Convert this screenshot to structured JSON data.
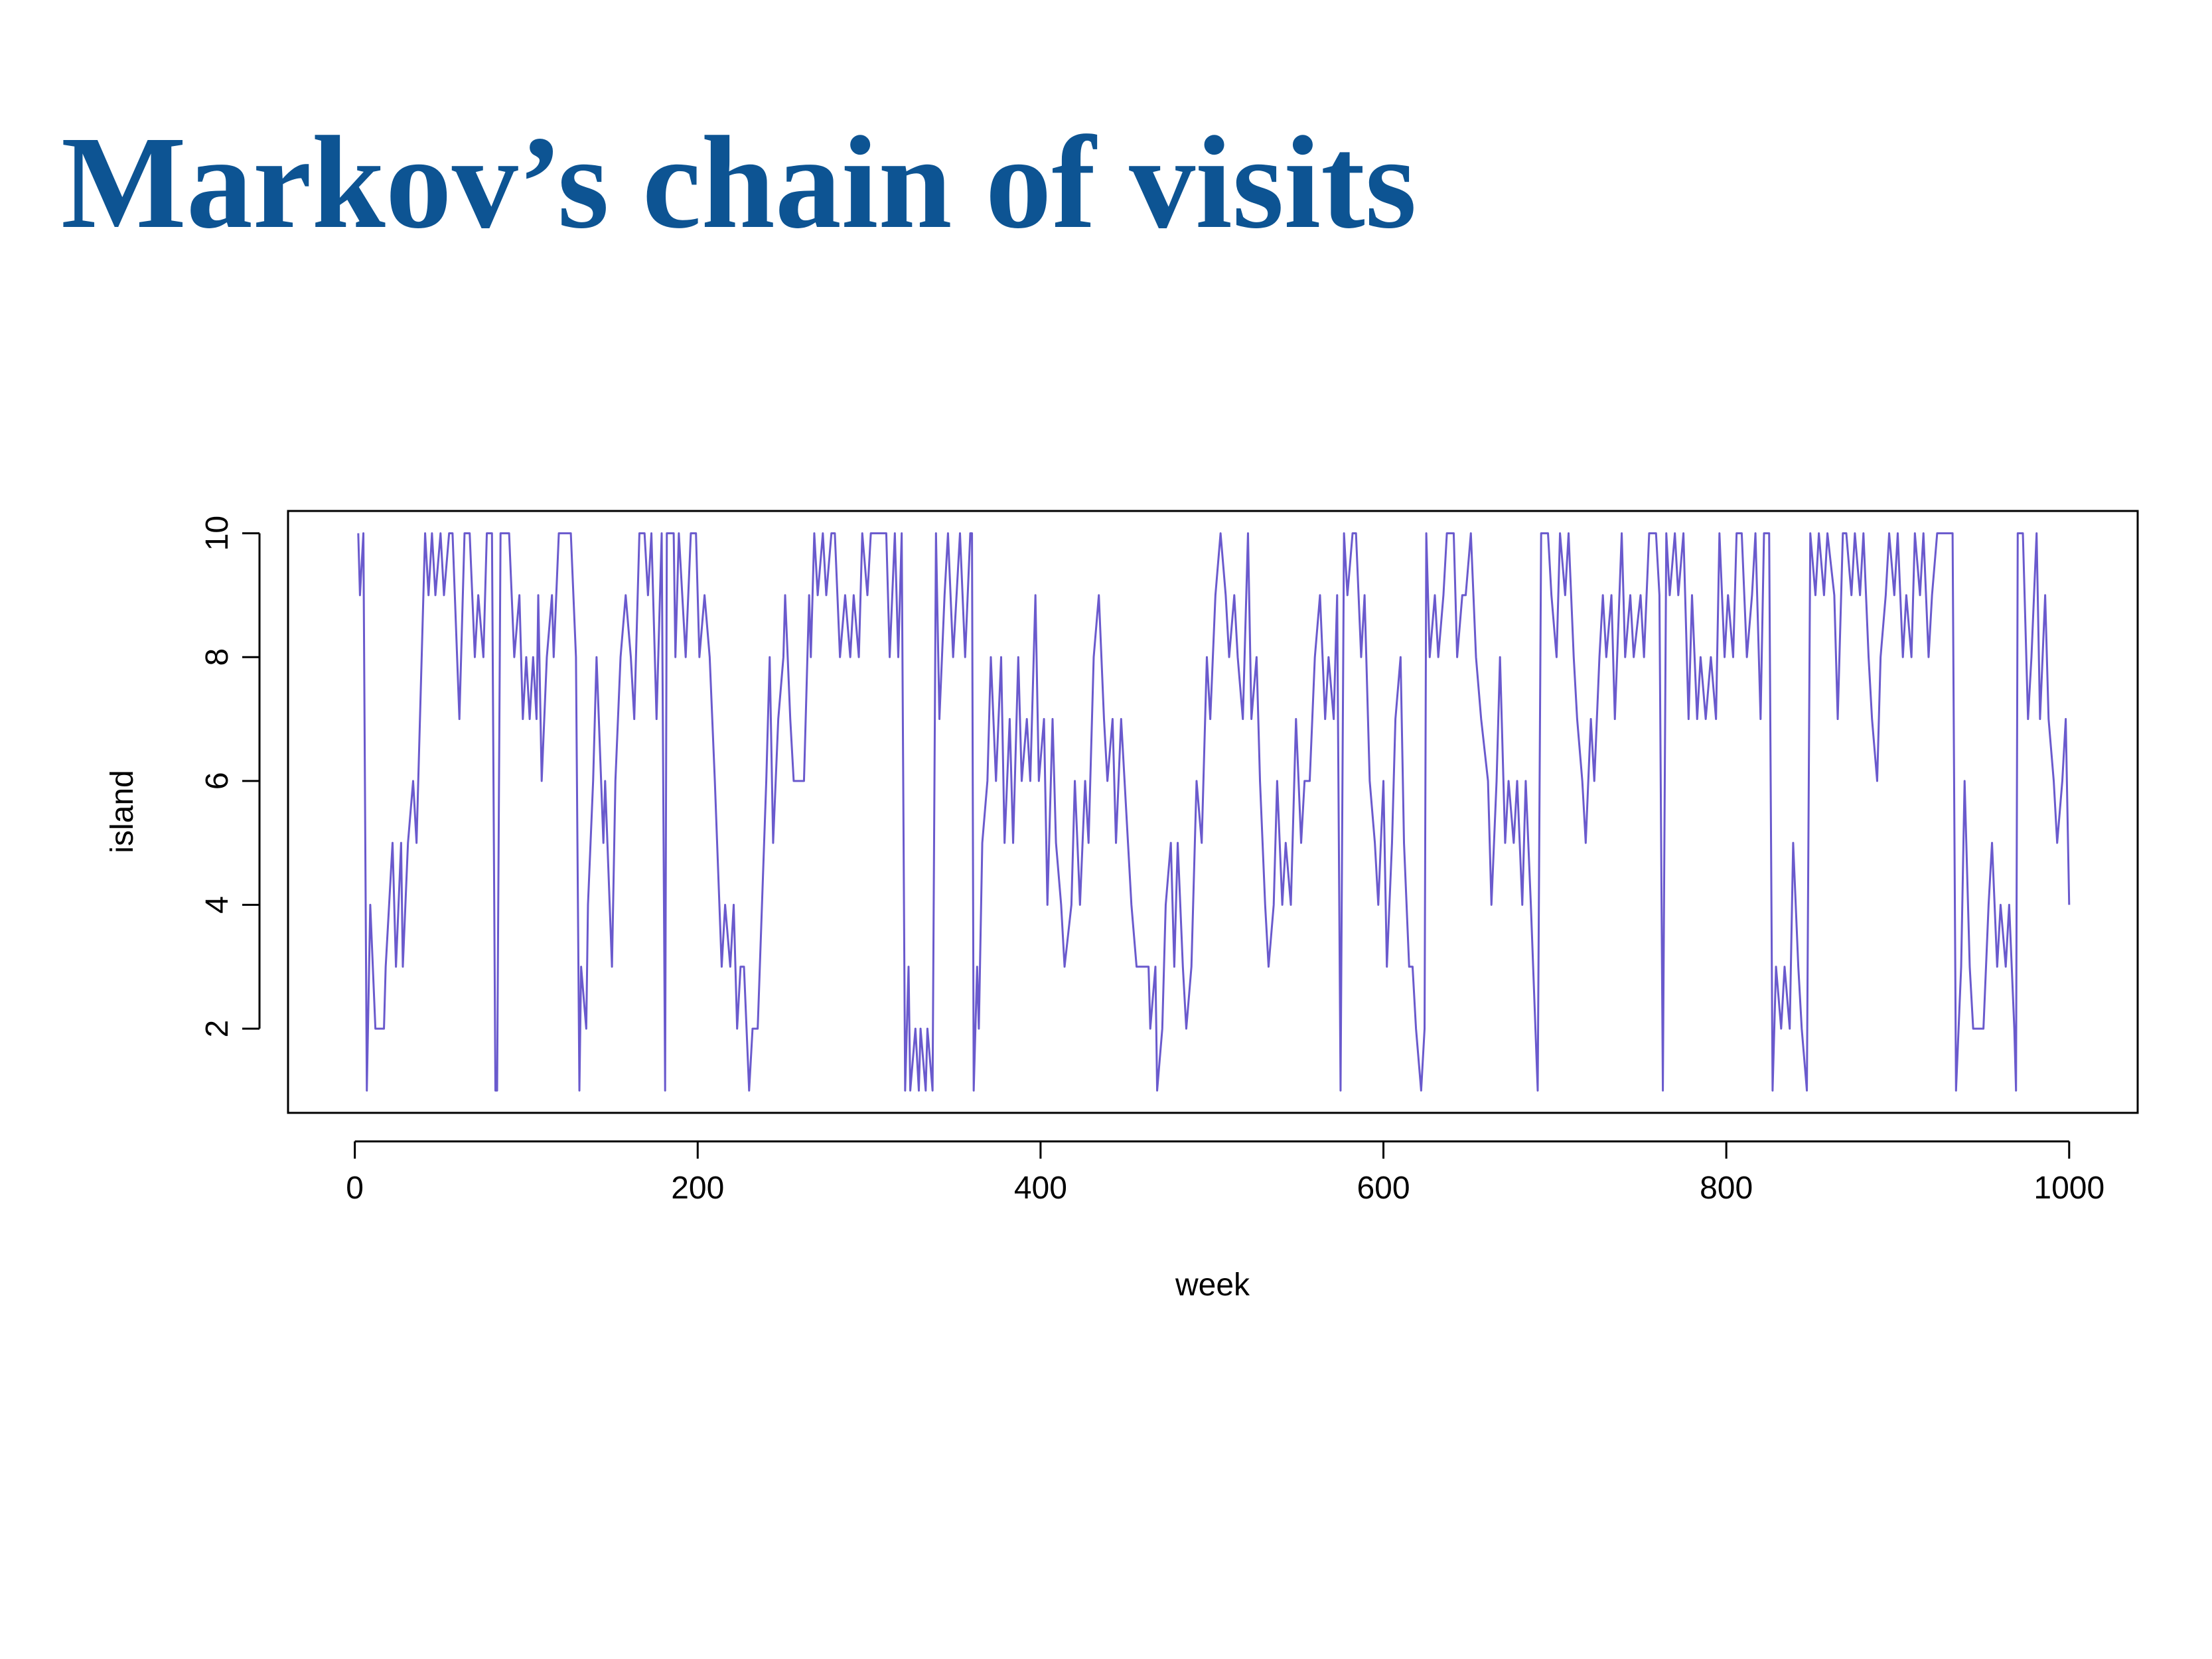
{
  "title": "Markov’s chain of visits",
  "chart_data": {
    "type": "line",
    "xlabel": "week",
    "ylabel": "island",
    "color": "#6a5acd",
    "xlim": [
      -38.96,
      1039.96
    ],
    "xticks": [
      0,
      200,
      400,
      600,
      800,
      1000
    ],
    "ylim": [
      0.64,
      10.36
    ],
    "yticks": [
      2,
      4,
      6,
      8,
      10
    ],
    "x": [
      2,
      3,
      5,
      7,
      9,
      12,
      17,
      18,
      22,
      24,
      27,
      28,
      31,
      34,
      36,
      41,
      43,
      45,
      47,
      50,
      52,
      55,
      57,
      61,
      64,
      67,
      70,
      72,
      75,
      77,
      80,
      82,
      83,
      85,
      90,
      93,
      96,
      98,
      100,
      102,
      104,
      106,
      107,
      109,
      112,
      115,
      116,
      119,
      126,
      129,
      131,
      132,
      135,
      136,
      139,
      141,
      145,
      146,
      150,
      152,
      155,
      158,
      161,
      163,
      166,
      169,
      171,
      173,
      176,
      179,
      181,
      182,
      186,
      187,
      189,
      191,
      193,
      196,
      199,
      201,
      204,
      207,
      210,
      214,
      216,
      219,
      221,
      223,
      225,
      227,
      230,
      232,
      235,
      240,
      242,
      244,
      247,
      250,
      251,
      254,
      256,
      262,
      265,
      266,
      268,
      270,
      273,
      275,
      278,
      280,
      283,
      286,
      289,
      291,
      294,
      296,
      299,
      301,
      304,
      310,
      312,
      315,
      317,
      319,
      321,
      323,
      324,
      327,
      329,
      330,
      333,
      334,
      337,
      339,
      341,
      344,
      346,
      349,
      353,
      356,
      359,
      360,
      361,
      363,
      364,
      366,
      369,
      371,
      374,
      377,
      379,
      382,
      384,
      387,
      389,
      392,
      394,
      397,
      399,
      402,
      404,
      407,
      409,
      412,
      414,
      418,
      420,
      423,
      426,
      428,
      431,
      434,
      437,
      439,
      442,
      444,
      447,
      449,
      453,
      456,
      463,
      464,
      467,
      468,
      471,
      473,
      476,
      478,
      480,
      483,
      485,
      488,
      491,
      494,
      497,
      499,
      502,
      505,
      508,
      510,
      513,
      515,
      518,
      521,
      523,
      526,
      528,
      531,
      533,
      536,
      538,
      541,
      543,
      546,
      549,
      552,
      554,
      557,
      560,
      563,
      566,
      568,
      571,
      573,
      575,
      577,
      579,
      582,
      584,
      587,
      589,
      592,
      595,
      597,
      600,
      602,
      605,
      607,
      610,
      612,
      615,
      617,
      619,
      622,
      624,
      625,
      627,
      630,
      632,
      635,
      637,
      641,
      643,
      646,
      648,
      651,
      654,
      657,
      661,
      663,
      666,
      668,
      671,
      673,
      676,
      678,
      681,
      683,
      686,
      690,
      692,
      696,
      698,
      701,
      703,
      706,
      708,
      711,
      713,
      716,
      718,
      721,
      723,
      726,
      728,
      730,
      733,
      735,
      739,
      741,
      744,
      746,
      750,
      752,
      755,
      759,
      761,
      763,
      765,
      767,
      770,
      772,
      775,
      778,
      780,
      783,
      785,
      788,
      791,
      794,
      796,
      799,
      801,
      804,
      806,
      809,
      812,
      815,
      817,
      820,
      822,
      825,
      827,
      829,
      832,
      834,
      837,
      839,
      842,
      844,
      847,
      849,
      852,
      854,
      857,
      859,
      863,
      865,
      868,
      870,
      873,
      875,
      878,
      880,
      883,
      885,
      888,
      890,
      893,
      895,
      898,
      900,
      903,
      905,
      908,
      910,
      913,
      915,
      918,
      920,
      923,
      932,
      934,
      937,
      939,
      942,
      944,
      950,
      953,
      955,
      958,
      960,
      963,
      965,
      968,
      969,
      970,
      973,
      976,
      978,
      981,
      983,
      986,
      988,
      991,
      993,
      996,
      998,
      1000
    ],
    "values": [
      10,
      9,
      10,
      1,
      4,
      2,
      2,
      3,
      5,
      3,
      5,
      3,
      5,
      6,
      5,
      10,
      9,
      10,
      9,
      10,
      9,
      10,
      10,
      7,
      10,
      10,
      8,
      9,
      8,
      10,
      10,
      1,
      1,
      10,
      10,
      8,
      9,
      7,
      8,
      7,
      8,
      7,
      9,
      6,
      8,
      9,
      8,
      10,
      10,
      8,
      1,
      3,
      2,
      4,
      6,
      8,
      5,
      6,
      3,
      6,
      8,
      9,
      8,
      7,
      10,
      10,
      9,
      10,
      7,
      10,
      1,
      10,
      10,
      8,
      10,
      9,
      8,
      10,
      10,
      8,
      9,
      8,
      6,
      3,
      4,
      3,
      4,
      2,
      3,
      3,
      1,
      2,
      2,
      6,
      8,
      5,
      7,
      8,
      9,
      7,
      6,
      6,
      9,
      8,
      10,
      9,
      10,
      9,
      10,
      10,
      8,
      9,
      8,
      9,
      8,
      10,
      9,
      10,
      10,
      10,
      8,
      10,
      8,
      10,
      1,
      3,
      1,
      2,
      1,
      2,
      1,
      2,
      1,
      10,
      7,
      9,
      10,
      8,
      10,
      8,
      10,
      10,
      1,
      3,
      2,
      5,
      6,
      8,
      6,
      8,
      5,
      7,
      5,
      8,
      6,
      7,
      6,
      9,
      6,
      7,
      4,
      7,
      5,
      4,
      3,
      4,
      6,
      4,
      6,
      5,
      8,
      9,
      7,
      6,
      7,
      5,
      7,
      6,
      4,
      3,
      3,
      2,
      3,
      1,
      2,
      4,
      5,
      3,
      5,
      3,
      2,
      3,
      6,
      5,
      8,
      7,
      9,
      10,
      9,
      8,
      9,
      8,
      7,
      10,
      7,
      8,
      6,
      4,
      3,
      4,
      6,
      4,
      5,
      4,
      7,
      5,
      6,
      6,
      8,
      9,
      7,
      8,
      7,
      9,
      1,
      10,
      9,
      10,
      10,
      8,
      9,
      6,
      5,
      4,
      6,
      3,
      5,
      7,
      8,
      5,
      3,
      3,
      2,
      1,
      2,
      10,
      8,
      9,
      8,
      9,
      10,
      10,
      8,
      9,
      9,
      10,
      8,
      7,
      6,
      4,
      6,
      8,
      5,
      6,
      5,
      6,
      4,
      6,
      4,
      1,
      10,
      10,
      9,
      8,
      10,
      9,
      10,
      8,
      7,
      6,
      5,
      7,
      6,
      8,
      9,
      8,
      9,
      7,
      10,
      8,
      9,
      8,
      9,
      8,
      10,
      10,
      9,
      1,
      10,
      9,
      10,
      9,
      10,
      7,
      9,
      7,
      8,
      7,
      8,
      7,
      10,
      8,
      9,
      8,
      10,
      10,
      8,
      9,
      10,
      7,
      10,
      10,
      1,
      3,
      2,
      3,
      2,
      5,
      3,
      2,
      1,
      10,
      9,
      10,
      9,
      10,
      9,
      7,
      10,
      10,
      9,
      10,
      9,
      10,
      8,
      7,
      6,
      8,
      9,
      10,
      9,
      10,
      8,
      9,
      8,
      10,
      9,
      10,
      8,
      9,
      10,
      10,
      1,
      3,
      6,
      3,
      2,
      2,
      4,
      5,
      3,
      4,
      3,
      4,
      2,
      1,
      10,
      10,
      7,
      8,
      10,
      7,
      9,
      7,
      6,
      5,
      6,
      7,
      4
    ]
  }
}
